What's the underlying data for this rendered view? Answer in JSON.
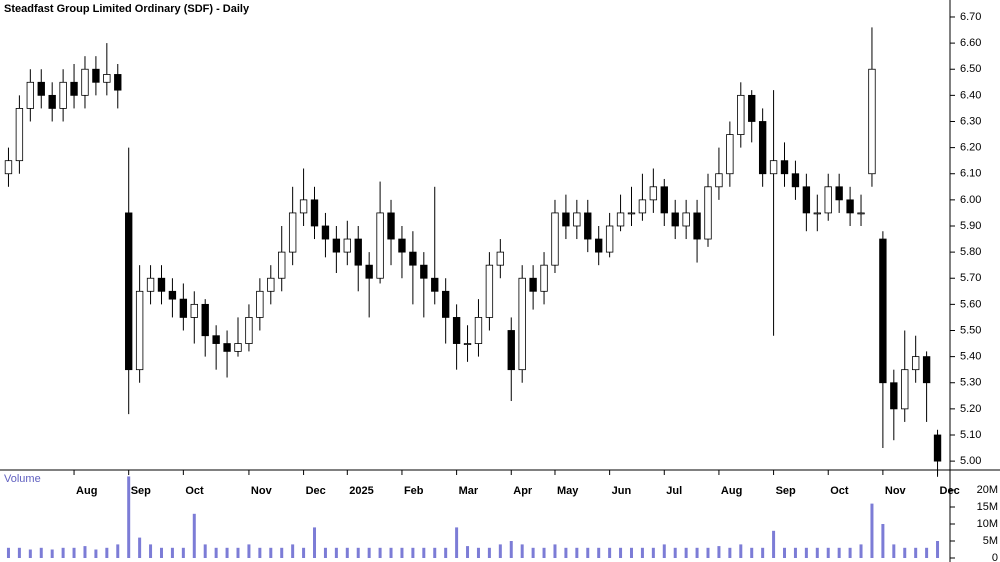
{
  "chart_data": {
    "type": "candlestick",
    "title": "Steadfast Group Limited Ordinary (SDF) - Daily",
    "categories": [
      null,
      null,
      null,
      null,
      null,
      null,
      "Aug",
      null,
      null,
      null,
      null,
      "Sep",
      null,
      null,
      null,
      null,
      "Oct",
      null,
      null,
      null,
      null,
      null,
      "Nov",
      null,
      null,
      null,
      null,
      "Dec",
      null,
      null,
      null,
      "2025",
      null,
      null,
      null,
      null,
      "Feb",
      null,
      null,
      null,
      null,
      "Mar",
      null,
      null,
      null,
      null,
      "Apr",
      null,
      null,
      null,
      "May",
      null,
      null,
      null,
      null,
      "Jun",
      null,
      null,
      null,
      null,
      "Jul",
      null,
      null,
      null,
      null,
      "Aug",
      null,
      null,
      null,
      null,
      "Sep",
      null,
      null,
      null,
      null,
      "Oct",
      null,
      null,
      null,
      null,
      "Nov",
      null,
      null,
      null,
      null,
      "Dec"
    ],
    "open": [
      6.1,
      6.15,
      6.35,
      6.45,
      6.4,
      6.35,
      6.45,
      6.4,
      6.5,
      6.45,
      6.48,
      5.95,
      5.35,
      5.65,
      5.7,
      5.65,
      5.62,
      5.55,
      5.6,
      5.48,
      5.45,
      5.42,
      5.45,
      5.55,
      5.65,
      5.7,
      5.8,
      5.95,
      6.0,
      5.9,
      5.85,
      5.8,
      5.85,
      5.75,
      5.7,
      5.95,
      5.85,
      5.8,
      5.75,
      5.7,
      5.65,
      5.55,
      5.45,
      5.45,
      5.55,
      5.75,
      5.5,
      5.35,
      5.7,
      5.65,
      5.75,
      5.95,
      5.9,
      5.95,
      5.85,
      5.8,
      5.9,
      5.95,
      5.95,
      6.0,
      6.05,
      5.95,
      5.9,
      5.95,
      5.85,
      6.05,
      6.1,
      6.25,
      6.4,
      6.3,
      6.1,
      6.15,
      6.1,
      6.05,
      5.95,
      5.95,
      6.05,
      6.0,
      5.95,
      6.1,
      5.85,
      5.3,
      5.2,
      5.35,
      5.4,
      5.1
    ],
    "high": [
      6.2,
      6.4,
      6.5,
      6.5,
      6.45,
      6.5,
      6.52,
      6.55,
      6.55,
      6.6,
      6.52,
      6.2,
      5.75,
      5.75,
      5.75,
      5.7,
      5.68,
      5.65,
      5.62,
      5.52,
      5.5,
      5.55,
      5.6,
      5.7,
      5.75,
      5.9,
      6.05,
      6.12,
      6.05,
      5.95,
      5.9,
      5.92,
      5.9,
      5.8,
      6.07,
      6.0,
      5.9,
      5.88,
      5.8,
      6.05,
      5.7,
      5.6,
      5.52,
      5.62,
      5.8,
      5.85,
      5.55,
      5.75,
      5.75,
      5.8,
      6.0,
      6.02,
      6.0,
      6.0,
      5.9,
      5.95,
      6.02,
      6.05,
      6.1,
      6.12,
      6.08,
      6.0,
      6.0,
      6.0,
      6.1,
      6.2,
      6.3,
      6.45,
      6.42,
      6.35,
      6.42,
      6.22,
      6.15,
      6.1,
      6.02,
      6.1,
      6.1,
      6.05,
      6.02,
      6.66,
      5.88,
      5.35,
      5.5,
      5.48,
      5.42,
      5.12
    ],
    "low": [
      6.05,
      6.1,
      6.3,
      6.35,
      6.3,
      6.3,
      6.35,
      6.35,
      6.4,
      6.4,
      6.35,
      5.18,
      5.3,
      5.6,
      5.6,
      5.55,
      5.5,
      5.45,
      5.4,
      5.35,
      5.32,
      5.4,
      5.42,
      5.5,
      5.6,
      5.65,
      5.75,
      5.9,
      5.85,
      5.78,
      5.72,
      5.75,
      5.65,
      5.55,
      5.68,
      5.75,
      5.7,
      5.6,
      5.55,
      5.6,
      5.45,
      5.35,
      5.38,
      5.4,
      5.5,
      5.7,
      5.23,
      5.3,
      5.58,
      5.6,
      5.72,
      5.85,
      5.85,
      5.8,
      5.75,
      5.78,
      5.88,
      5.9,
      5.92,
      5.95,
      5.9,
      5.85,
      5.85,
      5.76,
      5.82,
      6.0,
      6.05,
      6.2,
      6.22,
      6.05,
      5.48,
      6.05,
      6.0,
      5.88,
      5.88,
      5.92,
      5.95,
      5.9,
      5.9,
      6.05,
      5.05,
      5.08,
      5.15,
      5.3,
      5.15,
      4.94
    ],
    "close": [
      6.15,
      6.35,
      6.45,
      6.4,
      6.35,
      6.45,
      6.4,
      6.5,
      6.45,
      6.48,
      6.42,
      5.35,
      5.65,
      5.7,
      5.65,
      5.62,
      5.55,
      5.6,
      5.48,
      5.45,
      5.42,
      5.45,
      5.55,
      5.65,
      5.7,
      5.8,
      5.95,
      6.0,
      5.9,
      5.85,
      5.8,
      5.85,
      5.75,
      5.7,
      5.95,
      5.85,
      5.8,
      5.75,
      5.7,
      5.65,
      5.55,
      5.45,
      5.45,
      5.55,
      5.75,
      5.8,
      5.35,
      5.7,
      5.65,
      5.75,
      5.95,
      5.9,
      5.95,
      5.85,
      5.8,
      5.9,
      5.95,
      5.95,
      6.0,
      6.05,
      5.95,
      5.9,
      5.95,
      5.85,
      6.05,
      6.1,
      6.25,
      6.4,
      6.3,
      6.1,
      6.15,
      6.1,
      6.05,
      5.95,
      5.95,
      6.05,
      6.0,
      5.95,
      5.95,
      6.5,
      5.3,
      5.2,
      5.35,
      5.4,
      5.3,
      5.0
    ],
    "up_color": "#ffffff",
    "down_color": "#000000",
    "ylim": [
      4.966,
      6.765
    ],
    "yticks": [
      {
        "value": 5.0,
        "label": "5.00"
      },
      {
        "value": 5.1,
        "label": "5.10"
      },
      {
        "value": 5.2,
        "label": "5.20"
      },
      {
        "value": 5.3,
        "label": "5.30"
      },
      {
        "value": 5.4,
        "label": "5.40"
      },
      {
        "value": 5.5,
        "label": "5.50"
      },
      {
        "value": 5.6,
        "label": "5.60"
      },
      {
        "value": 5.7,
        "label": "5.70"
      },
      {
        "value": 5.8,
        "label": "5.80"
      },
      {
        "value": 5.9,
        "label": "5.90"
      },
      {
        "value": 6.0,
        "label": "6.00"
      },
      {
        "value": 6.1,
        "label": "6.10"
      },
      {
        "value": 6.2,
        "label": "6.20"
      },
      {
        "value": 6.3,
        "label": "6.30"
      },
      {
        "value": 6.4,
        "label": "6.40"
      },
      {
        "value": 6.5,
        "label": "6.50"
      },
      {
        "value": 6.6,
        "label": "6.60"
      },
      {
        "value": 6.7,
        "label": "6.70"
      }
    ],
    "volume": {
      "title": "Volume",
      "color": "#7c7cd6",
      "values": [
        3,
        3,
        2.5,
        3,
        2.5,
        3,
        3,
        3.5,
        2.5,
        3,
        4,
        24,
        6,
        4,
        3,
        3,
        3,
        13,
        4,
        3,
        3,
        3,
        4,
        3,
        3,
        3,
        4,
        3,
        9,
        3,
        3,
        3,
        3,
        3,
        3,
        3,
        3,
        3,
        3,
        3,
        3,
        9,
        3.5,
        3,
        3,
        4,
        5,
        4,
        3,
        3,
        4,
        3,
        3,
        3,
        3,
        3,
        3,
        3,
        3,
        3,
        4,
        3,
        3,
        3,
        3,
        3.5,
        3,
        4,
        3,
        3,
        8,
        3,
        3,
        3,
        3,
        3,
        3,
        3,
        4,
        16,
        10,
        4,
        3,
        3,
        3,
        5
      ],
      "ylim": [
        0,
        25.3
      ],
      "yticks": [
        0,
        {
          "value": 5,
          "label": "5M"
        },
        {
          "value": 10,
          "label": "10M"
        },
        {
          "value": 15,
          "label": "15M"
        },
        {
          "value": 20,
          "label": "20M"
        }
      ]
    }
  }
}
